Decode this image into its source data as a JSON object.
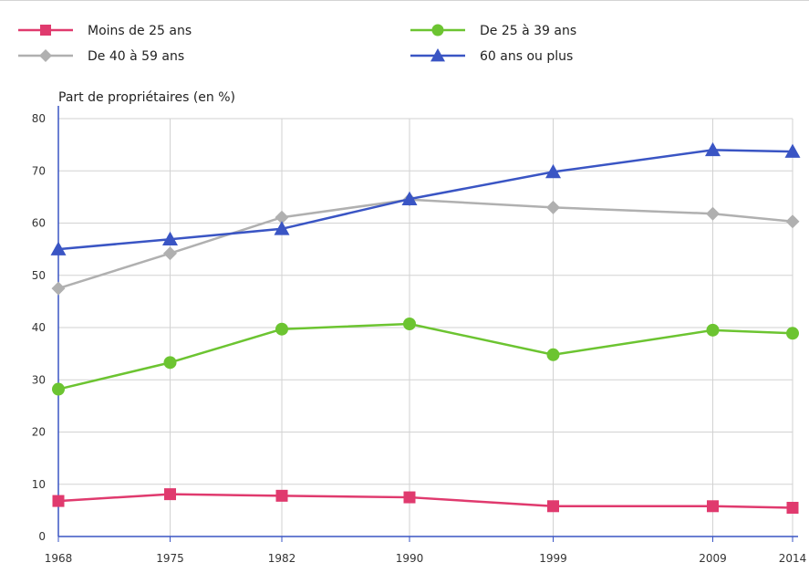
{
  "chart_data": {
    "type": "line",
    "ylabel": "Part de propriétaires (en %)",
    "xlabel": "",
    "ylim": [
      0,
      80
    ],
    "yticks": [
      "0",
      "10",
      "20",
      "30",
      "40",
      "50",
      "60",
      "70",
      "80"
    ],
    "x": [
      1968,
      1975,
      1982,
      1990,
      1999,
      2009,
      2014
    ],
    "xticks": [
      "1968",
      "1975",
      "1982",
      "1990",
      "1999",
      "2009",
      "2014"
    ],
    "grid": true,
    "legend_position": "top",
    "series": [
      {
        "name": "Moins de 25 ans",
        "color": "#e03a6e",
        "marker": "square",
        "values": [
          6.8,
          8.1,
          7.8,
          7.5,
          5.8,
          5.8,
          5.5
        ]
      },
      {
        "name": "De 25 à 39 ans",
        "color": "#6cc431",
        "marker": "circle",
        "values": [
          28.2,
          33.3,
          39.7,
          40.7,
          34.8,
          39.5,
          38.9
        ]
      },
      {
        "name": "De 40 à 59 ans",
        "color": "#b0b0b0",
        "marker": "diamond",
        "values": [
          47.5,
          54.2,
          61.1,
          64.5,
          63.0,
          61.8,
          60.3
        ]
      },
      {
        "name": "60 ans ou plus",
        "color": "#3a55c4",
        "marker": "triangle",
        "values": [
          55.0,
          56.9,
          58.9,
          64.6,
          69.8,
          74.0,
          73.7
        ]
      }
    ]
  }
}
